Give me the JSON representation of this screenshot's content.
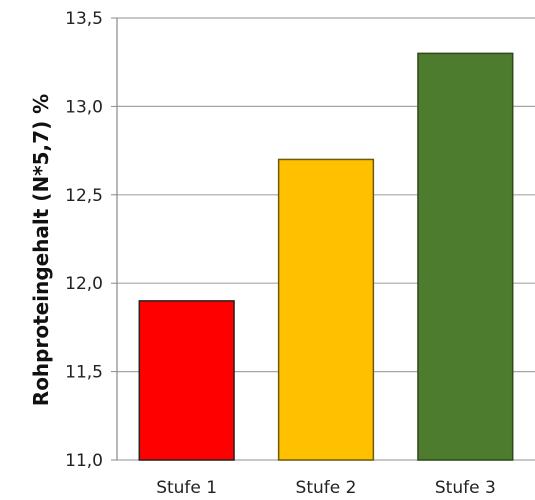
{
  "chart_data": {
    "type": "bar",
    "title": "",
    "xlabel": "",
    "ylabel": "Rohproteingehalt (N*5,7) %",
    "categories": [
      "Stufe 1",
      "Stufe 2",
      "Stufe 3"
    ],
    "values": [
      11.9,
      12.7,
      13.3
    ],
    "ylim": [
      11.0,
      13.5
    ],
    "yticks": [
      "11,0",
      "11,5",
      "12,0",
      "12,5",
      "13,0",
      "13,5"
    ],
    "grid": true,
    "bar_colors": [
      "#ff0000",
      "#ffc000",
      "#4e7c2e"
    ],
    "bar_edge_colors": [
      "#222222",
      "#6b5a10",
      "#2e4a1c"
    ]
  }
}
